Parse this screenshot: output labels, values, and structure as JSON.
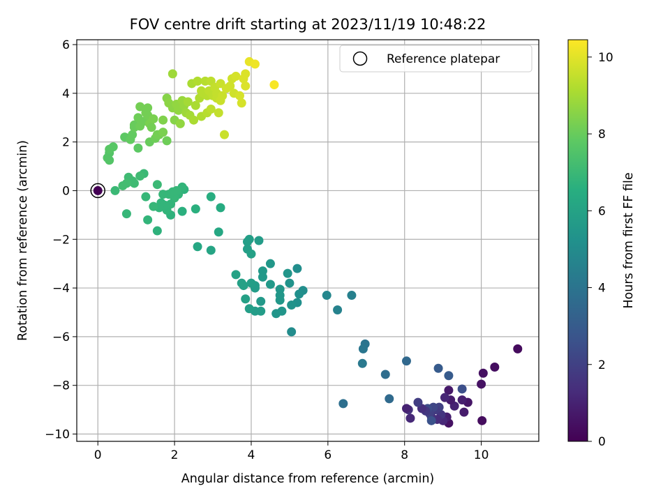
{
  "chart_data": {
    "type": "scatter",
    "title": "FOV centre drift starting at 2023/11/19 10:48:22",
    "xlabel": "Angular distance from reference (arcmin)",
    "ylabel": "Rotation from reference (arcmin)",
    "xlim": [
      -0.55,
      11.5
    ],
    "ylim": [
      -10.3,
      6.2
    ],
    "xticks": [
      0,
      2,
      4,
      6,
      8,
      10
    ],
    "yticks": [
      -10,
      -8,
      -6,
      -4,
      -2,
      0,
      2,
      4,
      6
    ],
    "xtick_labels": [
      "0",
      "2",
      "4",
      "6",
      "8",
      "10"
    ],
    "ytick_labels": [
      "−10",
      "−8",
      "−6",
      "−4",
      "−2",
      "0",
      "2",
      "4",
      "6"
    ],
    "grid": true,
    "colormap": "viridis",
    "colorbar": {
      "label": "Hours from first FF file",
      "range": [
        0,
        10.45
      ],
      "ticks": [
        0,
        2,
        4,
        6,
        8,
        10
      ],
      "tick_labels": [
        "0",
        "2",
        "4",
        "6",
        "8",
        "10"
      ]
    },
    "legend": {
      "placement": "top-right",
      "entries": [
        {
          "label": "Reference platepar",
          "marker": "open-circle"
        }
      ]
    },
    "reference_point": {
      "x": 0,
      "y": 0
    },
    "points": [
      {
        "x": 0.0,
        "y": 0.0,
        "c": 0.0
      },
      {
        "x": 10.95,
        "y": -6.5,
        "c": 0.3
      },
      {
        "x": 10.35,
        "y": -7.25,
        "c": 0.4
      },
      {
        "x": 10.05,
        "y": -7.5,
        "c": 0.45
      },
      {
        "x": 10.0,
        "y": -7.95,
        "c": 0.5
      },
      {
        "x": 10.02,
        "y": -9.45,
        "c": 0.35
      },
      {
        "x": 9.65,
        "y": -8.7,
        "c": 0.6
      },
      {
        "x": 9.55,
        "y": -9.1,
        "c": 0.8
      },
      {
        "x": 9.5,
        "y": -8.6,
        "c": 0.9
      },
      {
        "x": 9.3,
        "y": -8.85,
        "c": 1.0
      },
      {
        "x": 9.15,
        "y": -8.2,
        "c": 0.7
      },
      {
        "x": 9.2,
        "y": -8.6,
        "c": 0.8
      },
      {
        "x": 9.05,
        "y": -8.5,
        "c": 1.1
      },
      {
        "x": 9.15,
        "y": -9.55,
        "c": 0.5
      },
      {
        "x": 9.1,
        "y": -9.3,
        "c": 0.9
      },
      {
        "x": 9.0,
        "y": -9.45,
        "c": 1.2
      },
      {
        "x": 8.95,
        "y": -9.2,
        "c": 1.6
      },
      {
        "x": 8.9,
        "y": -8.9,
        "c": 2.0
      },
      {
        "x": 8.85,
        "y": -9.4,
        "c": 1.3
      },
      {
        "x": 8.8,
        "y": -9.0,
        "c": 1.8
      },
      {
        "x": 8.75,
        "y": -8.9,
        "c": 2.2
      },
      {
        "x": 8.7,
        "y": -9.3,
        "c": 1.5
      },
      {
        "x": 8.65,
        "y": -9.15,
        "c": 2.0
      },
      {
        "x": 8.6,
        "y": -8.95,
        "c": 2.4
      },
      {
        "x": 8.7,
        "y": -9.45,
        "c": 2.6
      },
      {
        "x": 8.55,
        "y": -9.05,
        "c": 1.7
      },
      {
        "x": 8.45,
        "y": -8.95,
        "c": 1.4
      },
      {
        "x": 8.35,
        "y": -8.7,
        "c": 1.9
      },
      {
        "x": 8.15,
        "y": -9.35,
        "c": 1.2
      },
      {
        "x": 8.1,
        "y": -9.0,
        "c": 1.5
      },
      {
        "x": 8.05,
        "y": -8.95,
        "c": 1.0
      },
      {
        "x": 9.5,
        "y": -8.15,
        "c": 2.5
      },
      {
        "x": 9.15,
        "y": -7.6,
        "c": 3.0
      },
      {
        "x": 8.88,
        "y": -7.3,
        "c": 3.0
      },
      {
        "x": 8.05,
        "y": -7.0,
        "c": 3.5
      },
      {
        "x": 7.6,
        "y": -8.55,
        "c": 3.6
      },
      {
        "x": 7.5,
        "y": -7.55,
        "c": 3.7
      },
      {
        "x": 6.4,
        "y": -8.75,
        "c": 3.8
      },
      {
        "x": 6.97,
        "y": -6.3,
        "c": 4.0
      },
      {
        "x": 6.92,
        "y": -6.5,
        "c": 4.1
      },
      {
        "x": 6.9,
        "y": -7.1,
        "c": 4.2
      },
      {
        "x": 6.62,
        "y": -4.3,
        "c": 4.5
      },
      {
        "x": 6.25,
        "y": -4.9,
        "c": 4.6
      },
      {
        "x": 5.97,
        "y": -4.3,
        "c": 4.8
      },
      {
        "x": 5.05,
        "y": -5.8,
        "c": 5.0
      },
      {
        "x": 5.35,
        "y": -4.1,
        "c": 5.1
      },
      {
        "x": 5.25,
        "y": -4.25,
        "c": 5.2
      },
      {
        "x": 5.2,
        "y": -4.6,
        "c": 5.2
      },
      {
        "x": 5.2,
        "y": -3.2,
        "c": 5.1
      },
      {
        "x": 5.05,
        "y": -4.7,
        "c": 5.3
      },
      {
        "x": 5.0,
        "y": -3.8,
        "c": 5.3
      },
      {
        "x": 4.95,
        "y": -3.4,
        "c": 5.4
      },
      {
        "x": 4.8,
        "y": -4.95,
        "c": 5.4
      },
      {
        "x": 4.75,
        "y": -4.05,
        "c": 5.5
      },
      {
        "x": 4.75,
        "y": -4.3,
        "c": 5.5
      },
      {
        "x": 4.75,
        "y": -4.5,
        "c": 5.5
      },
      {
        "x": 4.65,
        "y": -5.05,
        "c": 5.4
      },
      {
        "x": 4.5,
        "y": -3.0,
        "c": 5.5
      },
      {
        "x": 4.5,
        "y": -3.85,
        "c": 5.6
      },
      {
        "x": 4.3,
        "y": -3.3,
        "c": 5.6
      },
      {
        "x": 4.3,
        "y": -3.55,
        "c": 5.6
      },
      {
        "x": 4.25,
        "y": -4.55,
        "c": 5.6
      },
      {
        "x": 4.25,
        "y": -4.95,
        "c": 5.7
      },
      {
        "x": 4.2,
        "y": -2.05,
        "c": 5.7
      },
      {
        "x": 4.1,
        "y": -4.95,
        "c": 5.7
      },
      {
        "x": 4.1,
        "y": -3.9,
        "c": 5.7
      },
      {
        "x": 4.1,
        "y": -4.0,
        "c": 5.7
      },
      {
        "x": 4.0,
        "y": -3.8,
        "c": 5.8
      },
      {
        "x": 3.95,
        "y": -4.85,
        "c": 5.8
      },
      {
        "x": 3.95,
        "y": -2.0,
        "c": 5.8
      },
      {
        "x": 3.9,
        "y": -2.1,
        "c": 5.8
      },
      {
        "x": 3.9,
        "y": -2.4,
        "c": 5.8
      },
      {
        "x": 4.0,
        "y": -2.6,
        "c": 5.9
      },
      {
        "x": 3.85,
        "y": -4.45,
        "c": 5.9
      },
      {
        "x": 3.8,
        "y": -3.9,
        "c": 5.9
      },
      {
        "x": 3.75,
        "y": -3.8,
        "c": 5.9
      },
      {
        "x": 3.6,
        "y": -3.45,
        "c": 6.0
      },
      {
        "x": 3.15,
        "y": -1.7,
        "c": 6.2
      },
      {
        "x": 3.2,
        "y": -0.7,
        "c": 6.4
      },
      {
        "x": 2.95,
        "y": -0.25,
        "c": 6.5
      },
      {
        "x": 2.95,
        "y": -2.45,
        "c": 6.1
      },
      {
        "x": 2.6,
        "y": -2.3,
        "c": 6.2
      },
      {
        "x": 2.55,
        "y": -0.75,
        "c": 6.6
      },
      {
        "x": 2.2,
        "y": -0.85,
        "c": 6.6
      },
      {
        "x": 2.25,
        "y": 0.05,
        "c": 6.7
      },
      {
        "x": 2.2,
        "y": 0.15,
        "c": 6.8
      },
      {
        "x": 2.1,
        "y": -0.15,
        "c": 6.8
      },
      {
        "x": 2.05,
        "y": 0.0,
        "c": 6.9
      },
      {
        "x": 2.0,
        "y": -0.3,
        "c": 6.9
      },
      {
        "x": 1.95,
        "y": -0.05,
        "c": 6.9
      },
      {
        "x": 1.9,
        "y": -0.55,
        "c": 6.8
      },
      {
        "x": 1.9,
        "y": -1.0,
        "c": 6.7
      },
      {
        "x": 1.85,
        "y": -0.15,
        "c": 6.9
      },
      {
        "x": 1.8,
        "y": -0.8,
        "c": 6.8
      },
      {
        "x": 1.75,
        "y": -0.6,
        "c": 6.8
      },
      {
        "x": 1.7,
        "y": -0.15,
        "c": 6.9
      },
      {
        "x": 1.65,
        "y": -0.5,
        "c": 6.8
      },
      {
        "x": 1.6,
        "y": -0.7,
        "c": 6.8
      },
      {
        "x": 1.55,
        "y": 0.25,
        "c": 7.0
      },
      {
        "x": 1.55,
        "y": -1.65,
        "c": 6.7
      },
      {
        "x": 1.45,
        "y": -0.65,
        "c": 6.9
      },
      {
        "x": 1.3,
        "y": -1.2,
        "c": 6.8
      },
      {
        "x": 1.25,
        "y": -0.25,
        "c": 6.9
      },
      {
        "x": 1.2,
        "y": 0.7,
        "c": 7.0
      },
      {
        "x": 1.1,
        "y": 0.6,
        "c": 7.1
      },
      {
        "x": 0.95,
        "y": 0.3,
        "c": 7.1
      },
      {
        "x": 0.9,
        "y": 0.4,
        "c": 7.1
      },
      {
        "x": 0.8,
        "y": 0.55,
        "c": 7.1
      },
      {
        "x": 0.75,
        "y": 0.3,
        "c": 7.2
      },
      {
        "x": 0.65,
        "y": 0.2,
        "c": 7.2
      },
      {
        "x": 0.75,
        "y": -0.95,
        "c": 6.9
      },
      {
        "x": 0.45,
        "y": 0.0,
        "c": 7.0
      },
      {
        "x": 0.3,
        "y": 1.25,
        "c": 7.6
      },
      {
        "x": 0.3,
        "y": 1.55,
        "c": 7.6
      },
      {
        "x": 0.25,
        "y": 1.35,
        "c": 7.6
      },
      {
        "x": 0.3,
        "y": 1.7,
        "c": 7.7
      },
      {
        "x": 0.4,
        "y": 1.8,
        "c": 7.7
      },
      {
        "x": 0.7,
        "y": 2.2,
        "c": 7.8
      },
      {
        "x": 0.85,
        "y": 2.1,
        "c": 7.9
      },
      {
        "x": 0.9,
        "y": 2.3,
        "c": 7.9
      },
      {
        "x": 0.95,
        "y": 2.6,
        "c": 8.0
      },
      {
        "x": 0.95,
        "y": 2.7,
        "c": 8.0
      },
      {
        "x": 1.05,
        "y": 1.75,
        "c": 7.8
      },
      {
        "x": 1.05,
        "y": 3.0,
        "c": 8.1
      },
      {
        "x": 1.1,
        "y": 2.65,
        "c": 8.1
      },
      {
        "x": 1.1,
        "y": 3.45,
        "c": 8.2
      },
      {
        "x": 1.2,
        "y": 2.85,
        "c": 8.1
      },
      {
        "x": 1.25,
        "y": 3.2,
        "c": 8.2
      },
      {
        "x": 1.3,
        "y": 3.1,
        "c": 8.2
      },
      {
        "x": 1.3,
        "y": 3.4,
        "c": 8.2
      },
      {
        "x": 1.35,
        "y": 2.75,
        "c": 8.3
      },
      {
        "x": 1.4,
        "y": 2.6,
        "c": 8.2
      },
      {
        "x": 1.35,
        "y": 2.0,
        "c": 8.0
      },
      {
        "x": 1.45,
        "y": 2.95,
        "c": 8.3
      },
      {
        "x": 1.5,
        "y": 2.15,
        "c": 8.1
      },
      {
        "x": 1.55,
        "y": 2.3,
        "c": 8.2
      },
      {
        "x": 1.6,
        "y": 2.3,
        "c": 8.2
      },
      {
        "x": 1.7,
        "y": 2.9,
        "c": 8.4
      },
      {
        "x": 1.7,
        "y": 2.4,
        "c": 8.3
      },
      {
        "x": 1.8,
        "y": 3.8,
        "c": 8.5
      },
      {
        "x": 1.8,
        "y": 2.05,
        "c": 8.1
      },
      {
        "x": 1.85,
        "y": 3.6,
        "c": 8.6
      },
      {
        "x": 1.95,
        "y": 4.8,
        "c": 8.9
      },
      {
        "x": 1.95,
        "y": 3.4,
        "c": 8.6
      },
      {
        "x": 2.0,
        "y": 2.9,
        "c": 8.5
      },
      {
        "x": 2.05,
        "y": 3.55,
        "c": 8.7
      },
      {
        "x": 2.1,
        "y": 3.3,
        "c": 8.7
      },
      {
        "x": 2.15,
        "y": 2.75,
        "c": 8.7
      },
      {
        "x": 2.2,
        "y": 3.7,
        "c": 8.8
      },
      {
        "x": 2.25,
        "y": 3.5,
        "c": 8.8
      },
      {
        "x": 2.3,
        "y": 3.2,
        "c": 8.9
      },
      {
        "x": 2.35,
        "y": 3.65,
        "c": 9.0
      },
      {
        "x": 2.4,
        "y": 3.1,
        "c": 9.0
      },
      {
        "x": 2.45,
        "y": 4.4,
        "c": 9.1
      },
      {
        "x": 2.5,
        "y": 2.9,
        "c": 9.1
      },
      {
        "x": 2.55,
        "y": 3.5,
        "c": 9.1
      },
      {
        "x": 2.6,
        "y": 4.5,
        "c": 9.2
      },
      {
        "x": 2.65,
        "y": 3.8,
        "c": 9.2
      },
      {
        "x": 2.7,
        "y": 3.05,
        "c": 9.2
      },
      {
        "x": 2.7,
        "y": 4.1,
        "c": 9.3
      },
      {
        "x": 2.75,
        "y": 4.0,
        "c": 9.3
      },
      {
        "x": 2.8,
        "y": 4.5,
        "c": 9.3
      },
      {
        "x": 2.85,
        "y": 3.2,
        "c": 9.3
      },
      {
        "x": 2.85,
        "y": 3.9,
        "c": 9.3
      },
      {
        "x": 2.9,
        "y": 4.1,
        "c": 9.4
      },
      {
        "x": 2.95,
        "y": 3.35,
        "c": 9.4
      },
      {
        "x": 2.95,
        "y": 4.5,
        "c": 9.4
      },
      {
        "x": 3.0,
        "y": 3.9,
        "c": 9.4
      },
      {
        "x": 3.05,
        "y": 4.25,
        "c": 9.5
      },
      {
        "x": 3.1,
        "y": 3.8,
        "c": 9.5
      },
      {
        "x": 3.1,
        "y": 4.0,
        "c": 9.5
      },
      {
        "x": 3.15,
        "y": 3.2,
        "c": 9.5
      },
      {
        "x": 3.2,
        "y": 4.4,
        "c": 9.6
      },
      {
        "x": 3.2,
        "y": 3.7,
        "c": 9.6
      },
      {
        "x": 3.25,
        "y": 3.9,
        "c": 9.6
      },
      {
        "x": 3.3,
        "y": 2.3,
        "c": 9.6
      },
      {
        "x": 3.35,
        "y": 4.2,
        "c": 9.7
      },
      {
        "x": 3.45,
        "y": 4.3,
        "c": 9.7
      },
      {
        "x": 3.5,
        "y": 4.6,
        "c": 9.7
      },
      {
        "x": 3.55,
        "y": 4.0,
        "c": 9.7
      },
      {
        "x": 3.6,
        "y": 4.7,
        "c": 9.8
      },
      {
        "x": 3.7,
        "y": 3.9,
        "c": 9.8
      },
      {
        "x": 3.75,
        "y": 3.6,
        "c": 9.8
      },
      {
        "x": 3.8,
        "y": 4.6,
        "c": 9.9
      },
      {
        "x": 3.85,
        "y": 4.8,
        "c": 9.9
      },
      {
        "x": 3.85,
        "y": 4.3,
        "c": 9.9
      },
      {
        "x": 3.95,
        "y": 5.3,
        "c": 10.1
      },
      {
        "x": 4.1,
        "y": 5.2,
        "c": 10.2
      },
      {
        "x": 4.6,
        "y": 4.35,
        "c": 10.35
      }
    ]
  }
}
